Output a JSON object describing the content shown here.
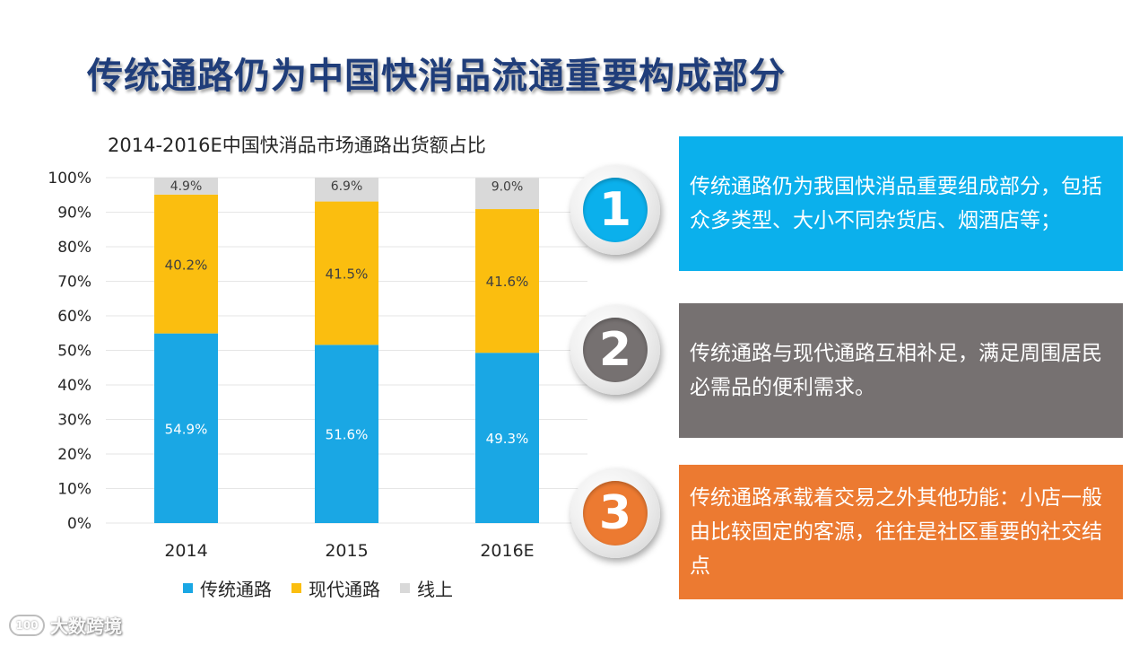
{
  "title": "传统通路仍为中国快消品流通重要构成部分",
  "chart_data": {
    "type": "bar",
    "stacked": true,
    "title": "2014-2016E中国快消品市场通路出货额占比",
    "categories": [
      "2014",
      "2015",
      "2016E"
    ],
    "series": [
      {
        "name": "传统通路",
        "values": [
          54.9,
          51.6,
          49.3
        ],
        "labels": [
          "54.9%",
          "51.6%",
          "49.3%"
        ],
        "color": "#1aa7e4"
      },
      {
        "name": "现代通路",
        "values": [
          40.2,
          41.5,
          41.6
        ],
        "labels": [
          "40.2%",
          "41.5%",
          "41.6%"
        ],
        "color": "#fbbe0f"
      },
      {
        "name": "线上",
        "values": [
          4.9,
          6.9,
          9.0
        ],
        "labels": [
          "4.9%",
          "6.9%",
          "9.0%"
        ],
        "color": "#d9d9d9"
      }
    ],
    "ylim": [
      0,
      100
    ],
    "yticks": [
      "0%",
      "10%",
      "20%",
      "30%",
      "40%",
      "50%",
      "60%",
      "70%",
      "80%",
      "90%",
      "100%"
    ],
    "grid": true,
    "legend_position": "bottom"
  },
  "points": [
    {
      "number": "1",
      "text": "传统通路仍为我国快消品重要组成部分，包括众多类型、大小不同杂货店、烟酒店等；",
      "color": "#0bb0ec"
    },
    {
      "number": "2",
      "text": "传统通路与现代通路互相补足，满足周围居民必需品的便利需求。",
      "color": "#767171"
    },
    {
      "number": "3",
      "text": "传统通路承载着交易之外其他功能：小店一般由比较固定的客源，往往是社区重要的社交结点",
      "color": "#ec7a31"
    }
  ],
  "watermark": {
    "logo_text": "100",
    "text": "大数跨境"
  }
}
